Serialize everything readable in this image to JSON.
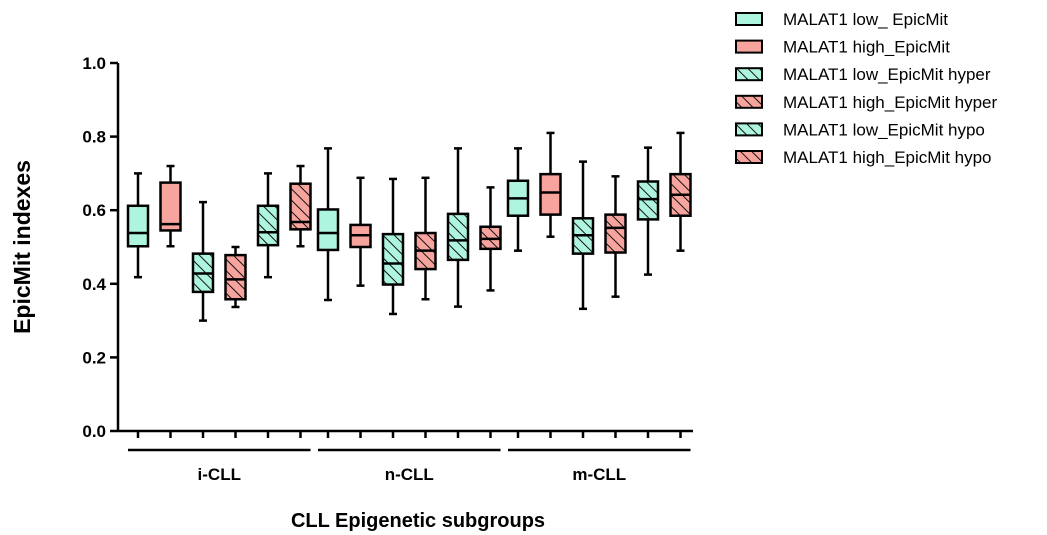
{
  "chart_data": {
    "type": "box",
    "xlabel": "CLL Epigenetic subgroups",
    "ylabel": "EpicMit indexes",
    "ylim": [
      0.0,
      1.0
    ],
    "yticks": [
      "0.0",
      "0.2",
      "0.4",
      "0.6",
      "0.8",
      "1.0"
    ],
    "groups": [
      "i-CLL",
      "n-CLL",
      "m-CLL"
    ],
    "legend_position": "top-right",
    "colors": {
      "low": "#aef5df",
      "high": "#f7a39e"
    },
    "series": [
      {
        "name": "MALAT1 low_ EpicMit",
        "color": "low",
        "pattern": "solid",
        "boxes": [
          {
            "min": 0.418,
            "q1": 0.502,
            "median": 0.538,
            "q3": 0.612,
            "max": 0.7
          },
          {
            "min": 0.356,
            "q1": 0.492,
            "median": 0.538,
            "q3": 0.602,
            "max": 0.768
          },
          {
            "min": 0.49,
            "q1": 0.585,
            "median": 0.632,
            "q3": 0.68,
            "max": 0.768
          }
        ]
      },
      {
        "name": "MALAT1 high_EpicMit",
        "color": "high",
        "pattern": "solid",
        "boxes": [
          {
            "min": 0.502,
            "q1": 0.545,
            "median": 0.562,
            "q3": 0.675,
            "max": 0.72
          },
          {
            "min": 0.395,
            "q1": 0.5,
            "median": 0.532,
            "q3": 0.56,
            "max": 0.688
          },
          {
            "min": 0.528,
            "q1": 0.588,
            "median": 0.648,
            "q3": 0.698,
            "max": 0.81
          }
        ]
      },
      {
        "name": "MALAT1 low_EpicMit hyper",
        "color": "low",
        "pattern": "hatch",
        "boxes": [
          {
            "min": 0.3,
            "q1": 0.378,
            "median": 0.428,
            "q3": 0.482,
            "max": 0.622
          },
          {
            "min": 0.318,
            "q1": 0.398,
            "median": 0.455,
            "q3": 0.535,
            "max": 0.685
          },
          {
            "min": 0.332,
            "q1": 0.482,
            "median": 0.532,
            "q3": 0.578,
            "max": 0.732
          }
        ]
      },
      {
        "name": "MALAT1 high_EpicMit hyper",
        "color": "high",
        "pattern": "hatch",
        "boxes": [
          {
            "min": 0.337,
            "q1": 0.358,
            "median": 0.412,
            "q3": 0.478,
            "max": 0.5
          },
          {
            "min": 0.358,
            "q1": 0.44,
            "median": 0.49,
            "q3": 0.538,
            "max": 0.688
          },
          {
            "min": 0.365,
            "q1": 0.485,
            "median": 0.552,
            "q3": 0.588,
            "max": 0.692
          }
        ]
      },
      {
        "name": "MALAT1 low_EpicMit hypo",
        "color": "low",
        "pattern": "hatch",
        "boxes": [
          {
            "min": 0.418,
            "q1": 0.505,
            "median": 0.54,
            "q3": 0.612,
            "max": 0.7
          },
          {
            "min": 0.338,
            "q1": 0.465,
            "median": 0.518,
            "q3": 0.59,
            "max": 0.768
          },
          {
            "min": 0.425,
            "q1": 0.575,
            "median": 0.63,
            "q3": 0.678,
            "max": 0.77
          }
        ]
      },
      {
        "name": "MALAT1 high_EpicMit hypo",
        "color": "high",
        "pattern": "hatch",
        "boxes": [
          {
            "min": 0.502,
            "q1": 0.548,
            "median": 0.568,
            "q3": 0.672,
            "max": 0.72
          },
          {
            "min": 0.382,
            "q1": 0.495,
            "median": 0.522,
            "q3": 0.555,
            "max": 0.662
          },
          {
            "min": 0.49,
            "q1": 0.585,
            "median": 0.642,
            "q3": 0.698,
            "max": 0.81
          }
        ]
      }
    ]
  }
}
